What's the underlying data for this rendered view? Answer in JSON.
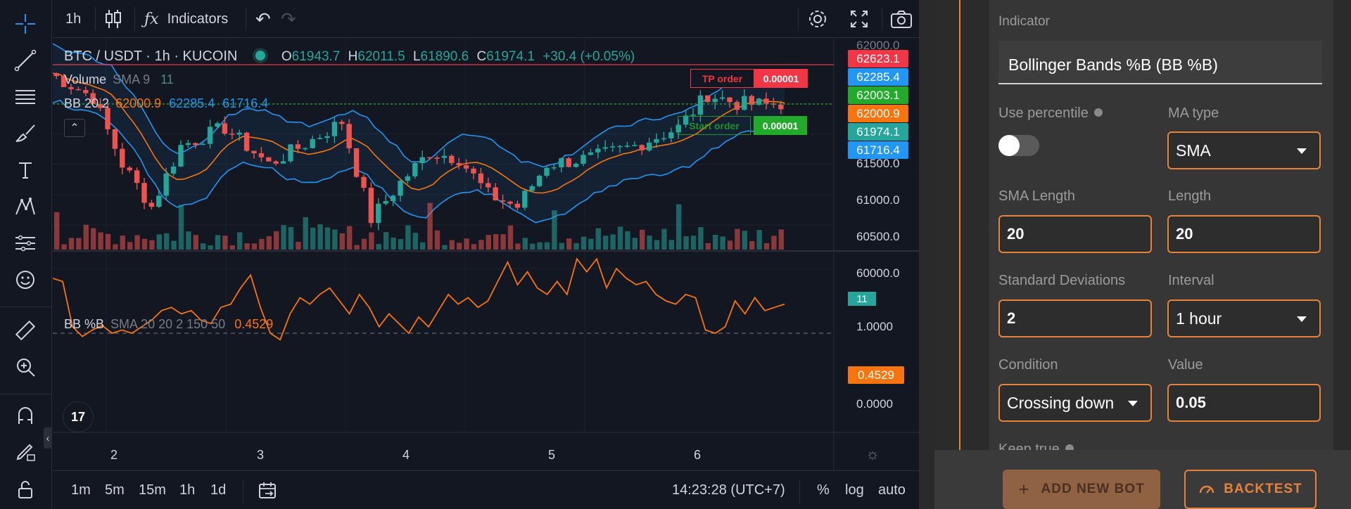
{
  "toolbar": {
    "interval": "1h",
    "indicators_label": "Indicators"
  },
  "legend": {
    "pair": "BTC / USDT · 1h · KUCOIN",
    "o_label": "O",
    "o_value": "61943.7",
    "h_label": "H",
    "h_value": "62011.5",
    "l_label": "L",
    "l_value": "61890.6",
    "c_label": "C",
    "c_value": "61974.1",
    "change": "+30.4 (+0.05%)",
    "volume_label": "Volume",
    "volume_sma": "SMA 9",
    "volume_value": "11",
    "bb_label": "BB 20 2",
    "bb_mid": "62000.9",
    "bb_upper": "62285.4",
    "bb_lower": "61716.4",
    "bbpct_label": "BB %B",
    "bbpct_params": "SMA 20 20 2 150 50",
    "bbpct_value": "0.4529"
  },
  "orders": {
    "tp_label": "TP order",
    "tp_value": "0.00001",
    "start_label": "Start order",
    "start_value": "0.00001"
  },
  "price_axis": {
    "tags": [
      {
        "value": "62623.1",
        "color": "#f23645"
      },
      {
        "value": "62285.4",
        "color": "#2196f3"
      },
      {
        "value": "62003.1",
        "color": "#22ab2a"
      },
      {
        "value": "62000.9",
        "color": "#f7740f"
      },
      {
        "value": "61974.1",
        "color": "#26a69a"
      },
      {
        "value": "61716.4",
        "color": "#2196f3"
      }
    ],
    "top_label": "62000.0",
    "levels": [
      "61500.0",
      "61000.0",
      "60500.0",
      "60000.0"
    ],
    "volume_tag": "11",
    "osc_levels": [
      "1.0000",
      "0.0000"
    ],
    "osc_tag": "0.4529"
  },
  "chart_data": {
    "type": "line",
    "x_ticks": [
      "2",
      "3",
      "4",
      "5",
      "6"
    ],
    "y_ticks_price": [
      60000,
      60500,
      61000,
      61500,
      62000
    ],
    "y_ticks_oscillator": [
      0,
      1
    ],
    "series": [
      {
        "name": "BB %B",
        "values": [
          0.85,
          0.8,
          0.1,
          -0.05,
          0.05,
          0.12,
          0.0,
          0.05,
          0.0,
          0.1,
          0.2,
          0.35,
          0.4,
          0.3,
          0.35,
          0.2,
          0.15,
          0.4,
          0.45,
          0.7,
          0.9,
          0.4,
          0.0,
          -0.1,
          0.3,
          0.55,
          0.45,
          0.6,
          0.7,
          0.5,
          0.3,
          0.6,
          0.4,
          0.1,
          0.3,
          0.15,
          0.0,
          0.25,
          0.1,
          0.35,
          0.6,
          0.45,
          0.55,
          0.4,
          0.5,
          0.8,
          1.1,
          0.75,
          0.95,
          0.7,
          0.6,
          0.8,
          0.6,
          1.15,
          0.95,
          1.15,
          0.7,
          1.0,
          0.85,
          0.75,
          0.8,
          0.6,
          0.5,
          0.45,
          0.6,
          0.55,
          0.05,
          0.0,
          0.1,
          0.5,
          0.3,
          0.55,
          0.35,
          0.4,
          0.45
        ]
      }
    ],
    "colors": {
      "up": "#26a69a",
      "down": "#ef5350",
      "bb": "#2196f3",
      "basis": "#f7740f",
      "osc": "#f7740f"
    }
  },
  "bottombar": {
    "ranges": [
      "1m",
      "5m",
      "15m",
      "1h",
      "1d"
    ],
    "time": "14:23:28 (UTC+7)",
    "percent": "%",
    "log": "log",
    "auto": "auto"
  },
  "form": {
    "indicator_label": "Indicator",
    "indicator_value": "Bollinger Bands %B (BB %B)",
    "use_percentile_label": "Use percentile",
    "ma_type_label": "MA type",
    "ma_type_value": "SMA",
    "sma_length_label": "SMA Length",
    "sma_length_value": "20",
    "length_label": "Length",
    "length_value": "20",
    "std_dev_label": "Standard Deviations",
    "std_dev_value": "2",
    "interval_label": "Interval",
    "interval_value": "1 hour",
    "condition_label": "Condition",
    "condition_value": "Crossing down",
    "value_label": "Value",
    "value_value": "0.05",
    "keep_true_label": "Keep true"
  },
  "actions": {
    "add_bot": "ADD NEW BOT",
    "backtest": "BACKTEST"
  }
}
